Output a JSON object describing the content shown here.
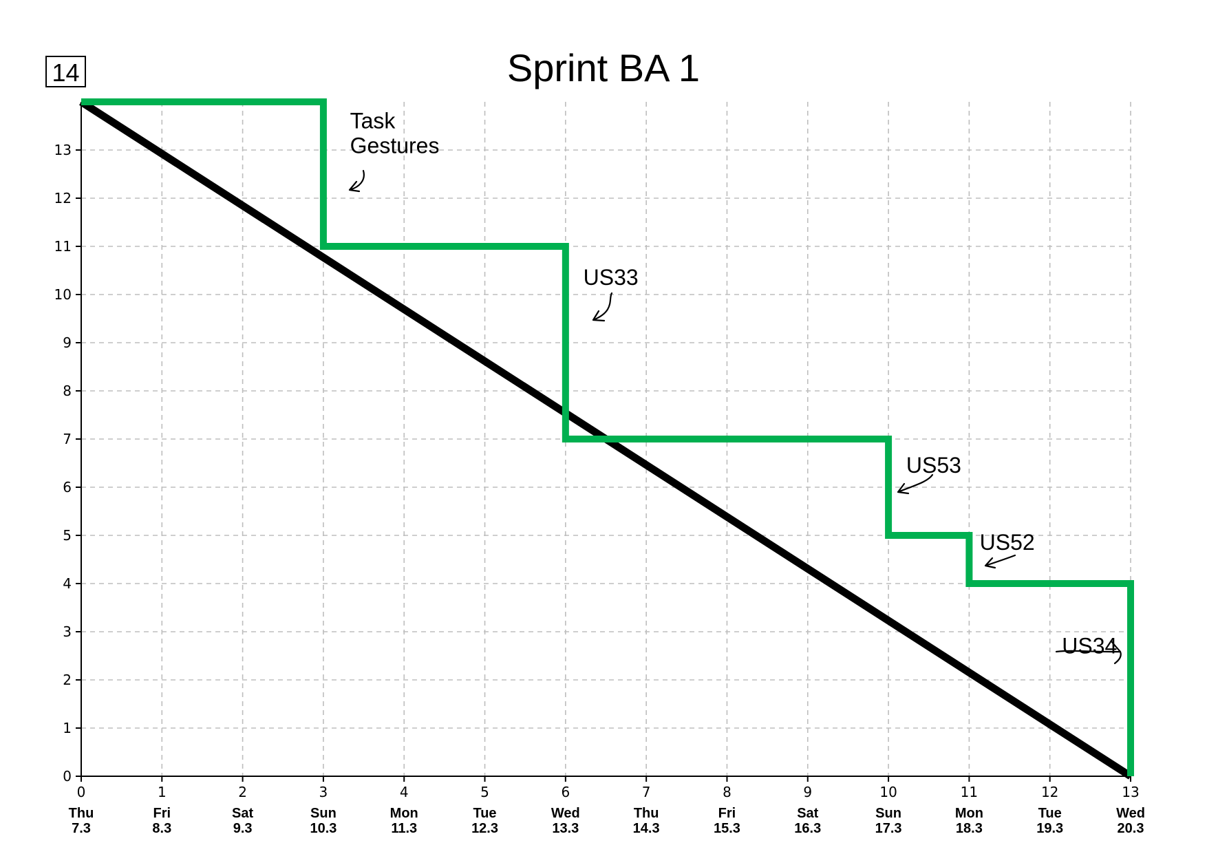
{
  "chart_data": {
    "type": "line",
    "title": "Sprint BA 1",
    "y_max_label": "14",
    "xlabel": "",
    "ylabel": "",
    "xlim": [
      0,
      13
    ],
    "ylim": [
      0,
      14
    ],
    "x_ticks": [
      0,
      1,
      2,
      3,
      4,
      5,
      6,
      7,
      8,
      9,
      10,
      11,
      12,
      13
    ],
    "y_ticks": [
      0,
      1,
      2,
      3,
      4,
      5,
      6,
      7,
      8,
      9,
      10,
      11,
      12,
      13
    ],
    "grid": true,
    "day_labels": [
      {
        "x": 0,
        "day": "Thu",
        "date": "7.3"
      },
      {
        "x": 1,
        "day": "Fri",
        "date": "8.3"
      },
      {
        "x": 2,
        "day": "Sat",
        "date": "9.3"
      },
      {
        "x": 3,
        "day": "Sun",
        "date": "10.3"
      },
      {
        "x": 4,
        "day": "Mon",
        "date": "11.3"
      },
      {
        "x": 5,
        "day": "Tue",
        "date": "12.3"
      },
      {
        "x": 6,
        "day": "Wed",
        "date": "13.3"
      },
      {
        "x": 7,
        "day": "Thu",
        "date": "14.3"
      },
      {
        "x": 8,
        "day": "Fri",
        "date": "15.3"
      },
      {
        "x": 9,
        "day": "Sat",
        "date": "16.3"
      },
      {
        "x": 10,
        "day": "Sun",
        "date": "17.3"
      },
      {
        "x": 11,
        "day": "Mon",
        "date": "18.3"
      },
      {
        "x": 12,
        "day": "Tue",
        "date": "19.3"
      },
      {
        "x": 13,
        "day": "Wed",
        "date": "20.3"
      }
    ],
    "series": [
      {
        "color": "#000000",
        "x": [
          0,
          13
        ],
        "y": [
          14,
          0
        ]
      },
      {
        "color": "#00b050",
        "x": [
          0,
          3,
          3,
          6,
          6,
          10,
          10,
          11,
          11,
          13,
          13
        ],
        "y": [
          14,
          14,
          11,
          11,
          7,
          7,
          5,
          5,
          4,
          4,
          0
        ]
      }
    ],
    "annotations": [
      {
        "lines": [
          "Task",
          "Gestures"
        ],
        "x": 3.33,
        "y": 13.45
      },
      {
        "lines": [
          "US33"
        ],
        "x": 6.22,
        "y": 10.2
      },
      {
        "lines": [
          "US53"
        ],
        "x": 10.22,
        "y": 6.3
      },
      {
        "lines": [
          "US52"
        ],
        "x": 11.13,
        "y": 4.7
      },
      {
        "lines": [
          "US34"
        ],
        "x": 12.15,
        "y": 2.55
      }
    ]
  }
}
